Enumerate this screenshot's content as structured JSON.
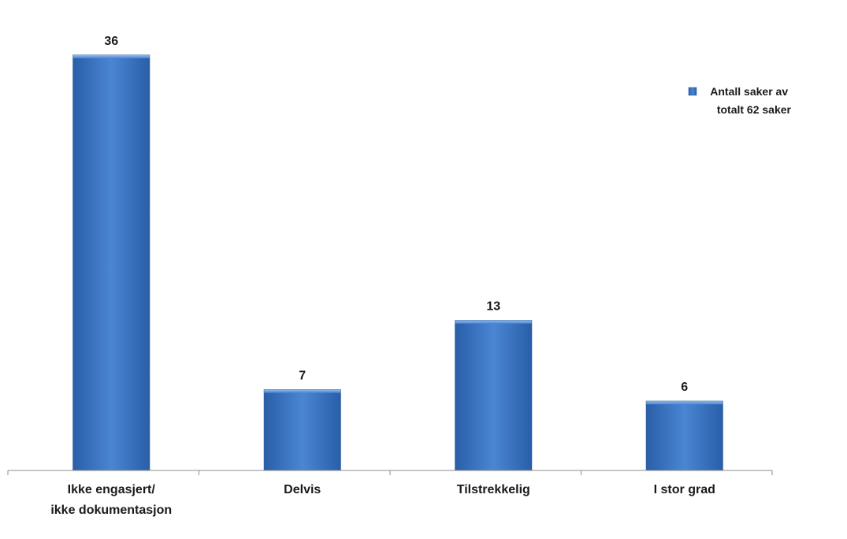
{
  "chart_data": {
    "type": "bar",
    "categories": [
      [
        "Ikke engasjert/",
        "ikke dokumentasjon"
      ],
      [
        "Delvis"
      ],
      [
        "Tilstrekkelig"
      ],
      [
        "I stor grad"
      ]
    ],
    "series": [
      {
        "name": [
          "Antall saker av",
          "totalt 62 saker"
        ],
        "values": [
          36,
          7,
          13,
          6
        ],
        "color": "#3b73c2"
      }
    ],
    "data_labels": [
      "36",
      "7",
      "13",
      "6"
    ],
    "title": "",
    "xlabel": "",
    "ylabel": "",
    "ylim": [
      0,
      36
    ],
    "grid": false,
    "legend_position": "right"
  }
}
